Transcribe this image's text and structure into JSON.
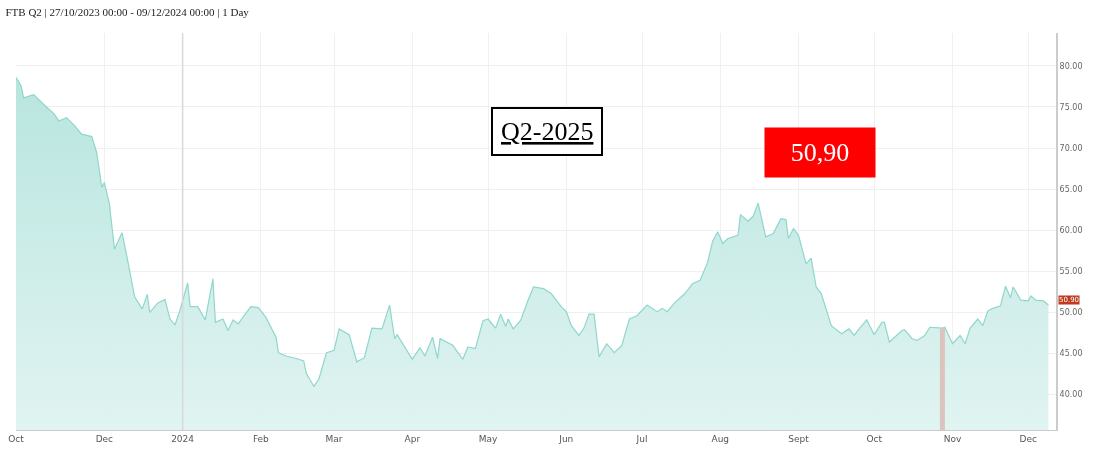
{
  "chart_data": {
    "type": "area",
    "title": "FTB Q2 | 27/10/2023 00:00 - 09/12/2024 00:00 | 1 Day",
    "x": [
      "2023-10-27",
      "2023-10-29",
      "2023-10-30",
      "2023-11-03",
      "2023-11-07",
      "2023-11-11",
      "2023-11-13",
      "2023-11-16",
      "2023-11-19",
      "2023-11-22",
      "2023-11-26",
      "2023-11-28",
      "2023-11-30",
      "2023-12-01",
      "2023-12-03",
      "2023-12-05",
      "2023-12-08",
      "2023-12-10",
      "2023-12-13",
      "2023-12-16",
      "2023-12-18",
      "2023-12-19",
      "2023-12-22",
      "2023-12-25",
      "2023-12-27",
      "2023-12-29",
      "2023-12-31",
      "2024-01-03",
      "2024-01-04",
      "2024-01-07",
      "2024-01-10",
      "2024-01-13",
      "2024-01-14",
      "2024-01-17",
      "2024-01-19",
      "2024-01-21",
      "2024-01-23",
      "2024-01-28",
      "2024-01-31",
      "2024-02-03",
      "2024-02-07",
      "2024-02-08",
      "2024-02-11",
      "2024-02-15",
      "2024-02-18",
      "2024-02-19",
      "2024-02-22",
      "2024-02-24",
      "2024-02-27",
      "2024-03-01",
      "2024-03-03",
      "2024-03-07",
      "2024-03-10",
      "2024-03-13",
      "2024-03-16",
      "2024-03-20",
      "2024-03-23",
      "2024-03-25",
      "2024-03-26",
      "2024-04-01",
      "2024-04-04",
      "2024-04-06",
      "2024-04-09",
      "2024-04-11",
      "2024-04-12",
      "2024-04-17",
      "2024-04-21",
      "2024-04-23",
      "2024-04-26",
      "2024-04-29",
      "2024-05-01",
      "2024-05-04",
      "2024-05-06",
      "2024-05-08",
      "2024-05-09",
      "2024-05-11",
      "2024-05-14",
      "2024-05-17",
      "2024-05-19",
      "2024-05-23",
      "2024-05-26",
      "2024-05-30",
      "2024-06-01",
      "2024-06-03",
      "2024-06-06",
      "2024-06-08",
      "2024-06-10",
      "2024-06-12",
      "2024-06-14",
      "2024-06-17",
      "2024-06-20",
      "2024-06-23",
      "2024-06-26",
      "2024-06-29",
      "2024-07-03",
      "2024-07-07",
      "2024-07-09",
      "2024-07-11",
      "2024-07-14",
      "2024-07-18",
      "2024-07-21",
      "2024-07-24",
      "2024-07-27",
      "2024-07-29",
      "2024-07-31",
      "2024-08-02",
      "2024-08-04",
      "2024-08-08",
      "2024-08-09",
      "2024-08-12",
      "2024-08-14",
      "2024-08-16",
      "2024-08-19",
      "2024-08-22",
      "2024-08-25",
      "2024-08-27",
      "2024-08-28",
      "2024-08-30",
      "2024-09-01",
      "2024-09-04",
      "2024-09-06",
      "2024-09-08",
      "2024-09-10",
      "2024-09-14",
      "2024-09-18",
      "2024-09-21",
      "2024-09-23",
      "2024-09-25",
      "2024-09-28",
      "2024-10-01",
      "2024-10-04",
      "2024-10-05",
      "2024-10-07",
      "2024-10-12",
      "2024-10-13",
      "2024-10-16",
      "2024-10-18",
      "2024-10-21",
      "2024-10-23",
      "2024-10-28",
      "2024-10-29",
      "2024-11-01",
      "2024-11-04",
      "2024-11-06",
      "2024-11-08",
      "2024-11-11",
      "2024-11-13",
      "2024-11-15",
      "2024-11-17",
      "2024-11-20",
      "2024-11-22",
      "2024-11-24",
      "2024-11-25",
      "2024-11-26",
      "2024-11-28",
      "2024-12-01",
      "2024-12-02",
      "2024-12-04",
      "2024-12-07",
      "2024-12-09"
    ],
    "series": [
      {
        "color": "#8fd6cc",
        "values": [
          78.6,
          77.6,
          76.1,
          76.5,
          75.3,
          74.2,
          73.3,
          73.7,
          72.8,
          71.7,
          71.4,
          69.4,
          65.2,
          65.8,
          63.2,
          57.7,
          59.7,
          56.7,
          51.9,
          50.4,
          52.2,
          50.0,
          51.1,
          51.6,
          49.2,
          48.5,
          50.3,
          53.6,
          50.7,
          50.7,
          49.1,
          54.1,
          48.8,
          49.2,
          47.8,
          49.1,
          48.6,
          50.7,
          50.6,
          49.4,
          47.0,
          45.1,
          44.7,
          44.4,
          44.1,
          42.6,
          41.0,
          41.9,
          45.1,
          45.4,
          48.0,
          47.3,
          44.0,
          44.5,
          48.1,
          48.0,
          50.9,
          46.8,
          47.3,
          44.3,
          45.7,
          44.7,
          47.0,
          44.4,
          46.8,
          46.0,
          44.3,
          45.8,
          45.6,
          49.0,
          49.2,
          48.1,
          49.8,
          48.3,
          49.2,
          48.0,
          49.1,
          51.6,
          53.1,
          52.9,
          52.3,
          50.7,
          50.1,
          48.4,
          47.2,
          48.1,
          49.8,
          49.8,
          44.6,
          46.2,
          45.1,
          46.0,
          49.2,
          49.6,
          50.9,
          50.1,
          50.5,
          50.1,
          51.2,
          52.3,
          53.5,
          53.9,
          56.1,
          58.7,
          59.8,
          58.4,
          59.0,
          59.4,
          61.9,
          61.1,
          61.7,
          63.3,
          59.2,
          59.6,
          61.4,
          61.3,
          59.0,
          60.2,
          59.4,
          55.9,
          56.6,
          53.1,
          52.3,
          48.4,
          47.4,
          48.0,
          47.2,
          48.0,
          49.1,
          47.3,
          48.8,
          48.8,
          46.4,
          47.8,
          47.9,
          46.8,
          46.6,
          47.2,
          48.2,
          48.1,
          48.2,
          46.2,
          47.2,
          46.2,
          48.1,
          49.2,
          48.4,
          50.2,
          50.5,
          50.8,
          53.2,
          51.8,
          53.1,
          52.6,
          51.5,
          51.4,
          52.0,
          51.5,
          51.4,
          50.9
        ]
      }
    ],
    "xlim": [
      "2023-10-27",
      "2024-12-12"
    ],
    "xticks": [
      {
        "value": "2023-10-27",
        "label": "Oct"
      },
      {
        "value": "2023-12-01",
        "label": "Dec"
      },
      {
        "value": "2024-01-01",
        "label": "2024"
      },
      {
        "value": "2024-02-01",
        "label": "Feb"
      },
      {
        "value": "2024-03-01",
        "label": "Mar"
      },
      {
        "value": "2024-04-01",
        "label": "Apr"
      },
      {
        "value": "2024-05-01",
        "label": "May"
      },
      {
        "value": "2024-06-01",
        "label": "Jun"
      },
      {
        "value": "2024-07-01",
        "label": "Jul"
      },
      {
        "value": "2024-08-01",
        "label": "Aug"
      },
      {
        "value": "2024-09-01",
        "label": "Sept"
      },
      {
        "value": "2024-10-01",
        "label": "Oct"
      },
      {
        "value": "2024-11-01",
        "label": "Nov"
      },
      {
        "value": "2024-12-01",
        "label": "Dec"
      }
    ],
    "ylim": [
      35.7,
      84
    ],
    "yticks": [
      {
        "value": 40,
        "label": "40.00"
      },
      {
        "value": 45,
        "label": "45.00"
      },
      {
        "value": 50,
        "label": "50.00"
      },
      {
        "value": 55,
        "label": "55.00"
      },
      {
        "value": 60,
        "label": "60.00"
      },
      {
        "value": 65,
        "label": "65.00"
      },
      {
        "value": 70,
        "label": "70.00"
      },
      {
        "value": 75,
        "label": "75.00"
      },
      {
        "value": 80,
        "label": "80.00"
      }
    ],
    "grid": true,
    "ref_lines": [
      {
        "axis": "x",
        "value": "2024-01-01",
        "color": "#d8d8d8"
      },
      {
        "axis": "x",
        "value": "2024-10-28",
        "color": "#dcc4be"
      }
    ],
    "annotations": [
      "Q2-2025",
      "50,90",
      {
        "text": "50.90",
        "x": "2024-12-09",
        "y": 50.9
      }
    ]
  }
}
